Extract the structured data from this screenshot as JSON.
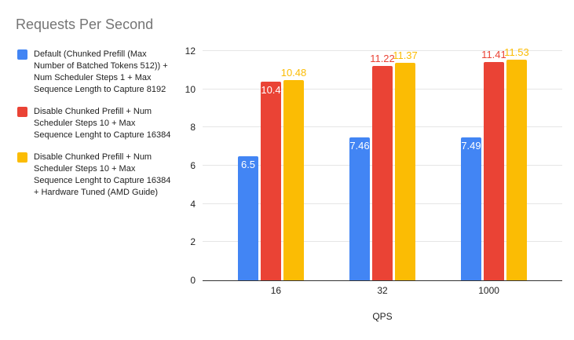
{
  "chart_data": {
    "type": "bar",
    "title": "Requests Per Second",
    "xlabel": "QPS",
    "ylabel": "",
    "categories": [
      "16",
      "32",
      "1000"
    ],
    "series": [
      {
        "name": "Default (Chunked Prefill (Max Number of Batched Tokens 512)) + Num Scheduler Steps 1 + Max Sequence Length to Capture 8192",
        "color": "#4285F4",
        "values": [
          6.5,
          7.46,
          7.49
        ],
        "labels": [
          "6.5",
          "7.46",
          "7.49"
        ],
        "label_placement": [
          "inside",
          "inside",
          "inside"
        ]
      },
      {
        "name": "Disable Chunked Prefill + Num Scheduler Steps 10 + Max Sequence Lenght to Capture 16384",
        "color": "#EA4335",
        "values": [
          10.4,
          11.22,
          11.41
        ],
        "labels": [
          "10.4",
          "11.22",
          "11.41"
        ],
        "label_placement": [
          "inside",
          "above",
          "above"
        ]
      },
      {
        "name": "Disable Chunked Prefill + Num Scheduler Steps 10 + Max Sequence Lenght to Capture 16384 + Hardware Tuned (AMD Guide)",
        "color": "#FBBC04",
        "values": [
          10.48,
          11.37,
          11.53
        ],
        "labels": [
          "10.48",
          "11.37",
          "11.53"
        ],
        "label_placement": [
          "above",
          "above",
          "above"
        ]
      }
    ],
    "ylim": [
      0,
      12
    ],
    "yticks": [
      0,
      2,
      4,
      6,
      8,
      10,
      12
    ],
    "grid": true,
    "legend_position": "left",
    "colors": {
      "title_text": "#757575",
      "gridline": "#e6e6e6",
      "axis_line": "#333333",
      "tick_text": "#222222",
      "inside_label_text": "#ffffff"
    }
  }
}
